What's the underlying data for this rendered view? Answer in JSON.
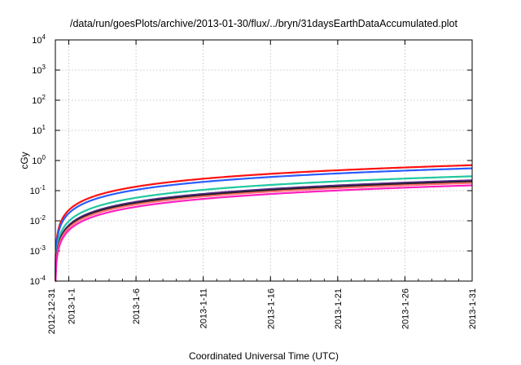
{
  "chart_data": {
    "type": "line",
    "title": "/data/run/goesPlots/archive/2013-01-30/flux/../bryn/31daysEarthDataAccumulated.plot",
    "xlabel": "Coordinated Universal Time (UTC)",
    "ylabel": "cGy",
    "yscale": "log",
    "ylim": [
      0.0001,
      10000
    ],
    "xlim": [
      "2012-12-31",
      "2013-01-31"
    ],
    "x_ticks": [
      "2012-12-31",
      "2013-1-1",
      "2013-1-6",
      "2013-1-11",
      "2013-1-16",
      "2013-1-21",
      "2013-1-26",
      "2013-1-31"
    ],
    "y_ticks": [
      {
        "base": "10",
        "exp": "-4"
      },
      {
        "base": "10",
        "exp": "-3"
      },
      {
        "base": "10",
        "exp": "-2"
      },
      {
        "base": "10",
        "exp": "-1"
      },
      {
        "base": "10",
        "exp": "0"
      },
      {
        "base": "10",
        "exp": "1"
      },
      {
        "base": "10",
        "exp": "2"
      },
      {
        "base": "10",
        "exp": "3"
      },
      {
        "base": "10",
        "exp": "4"
      }
    ],
    "grid": true,
    "legend": "none",
    "accumulation_shape": "linear",
    "series": [
      {
        "color": "#ff1010",
        "final_value": 0.7
      },
      {
        "color": "#2a5cff",
        "final_value": 0.55
      },
      {
        "color": "#20c8a0",
        "final_value": 0.3
      },
      {
        "color": "#5a2a8a",
        "final_value": 0.22
      },
      {
        "color": "#202020",
        "final_value": 0.2
      },
      {
        "color": "#ff7070",
        "final_value": 0.18
      },
      {
        "color": "#ff20c0",
        "final_value": 0.15
      }
    ]
  }
}
